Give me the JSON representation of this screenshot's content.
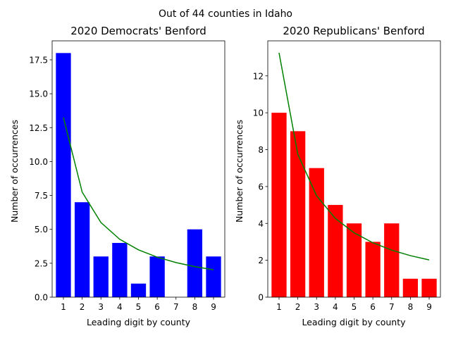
{
  "figure": {
    "suptitle": "Out of 44 counties in Idaho"
  },
  "chart_data": [
    {
      "type": "bar",
      "title": "2020 Democrats' Benford",
      "xlabel": "Leading digit by county",
      "ylabel": "Number of occurrences",
      "categories": [
        "1",
        "2",
        "3",
        "4",
        "5",
        "6",
        "7",
        "8",
        "9"
      ],
      "values": [
        18,
        7,
        3,
        4,
        1,
        3,
        0,
        5,
        3
      ],
      "bar_color": "#0000ff",
      "expected_line": {
        "color": "#008000",
        "values": [
          13.25,
          7.75,
          5.5,
          4.27,
          3.49,
          2.95,
          2.55,
          2.25,
          2.02
        ]
      },
      "ylim": [
        0,
        18.9
      ],
      "yticks": [
        0,
        2.5,
        5,
        7.5,
        10,
        12.5,
        15,
        17.5
      ],
      "ytick_labels": [
        "0.0",
        "2.5",
        "5.0",
        "7.5",
        "10.0",
        "12.5",
        "15.0",
        "17.5"
      ],
      "grid": false
    },
    {
      "type": "bar",
      "title": "2020 Republicans' Benford",
      "xlabel": "Leading digit by county",
      "ylabel": "Number of occurrences",
      "categories": [
        "1",
        "2",
        "3",
        "4",
        "5",
        "6",
        "7",
        "8",
        "9"
      ],
      "values": [
        10,
        9,
        7,
        5,
        4,
        3,
        4,
        1,
        1
      ],
      "bar_color": "#ff0000",
      "expected_line": {
        "color": "#008000",
        "values": [
          13.25,
          7.75,
          5.5,
          4.27,
          3.49,
          2.95,
          2.55,
          2.25,
          2.02
        ]
      },
      "ylim": [
        0,
        13.9
      ],
      "yticks": [
        0,
        2,
        4,
        6,
        8,
        10,
        12
      ],
      "ytick_labels": [
        "0",
        "2",
        "4",
        "6",
        "8",
        "10",
        "12"
      ],
      "grid": false
    }
  ]
}
